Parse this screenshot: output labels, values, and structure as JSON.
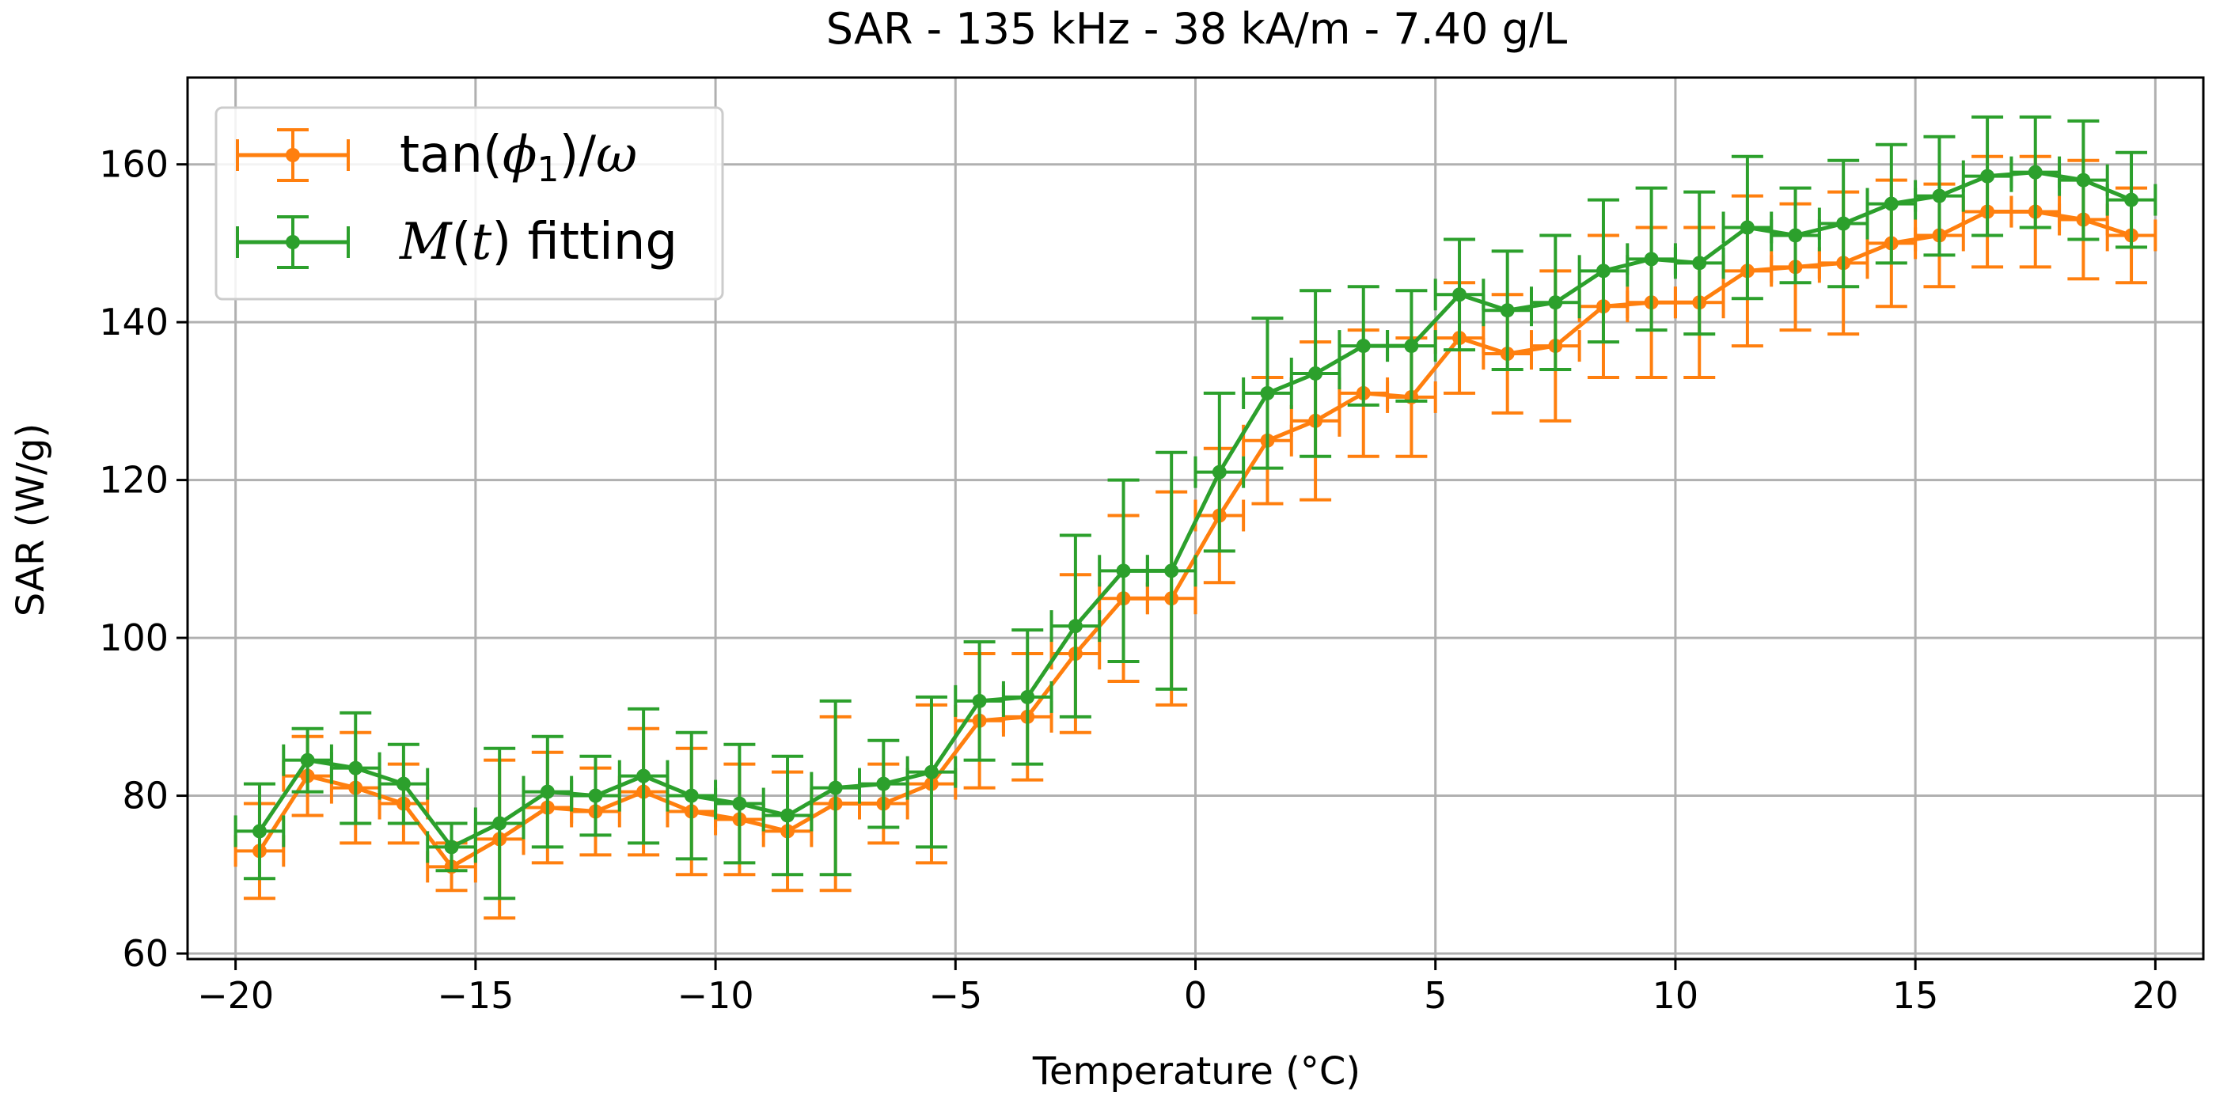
{
  "chart_data": {
    "type": "line",
    "title": "SAR - 135 kHz - 38 kA/m - 7.40 g/L",
    "xlabel": "Temperature (°C)",
    "ylabel": "SAR (W/g)",
    "xlim": [
      -21,
      21
    ],
    "ylim": [
      59.3,
      171
    ],
    "xticks": [
      -20,
      -15,
      -10,
      -5,
      0,
      5,
      10,
      15,
      20
    ],
    "xtick_labels": [
      "−20",
      "−15",
      "−10",
      "−5",
      "0",
      "5",
      "10",
      "15",
      "20"
    ],
    "yticks": [
      60,
      80,
      100,
      120,
      140,
      160
    ],
    "ytick_labels": [
      "60",
      "80",
      "100",
      "120",
      "140",
      "160"
    ],
    "grid": true,
    "legend_position": "top-left",
    "x_error": 0.5,
    "x": [
      -19.5,
      -18.5,
      -17.5,
      -16.5,
      -15.5,
      -14.5,
      -13.5,
      -12.5,
      -11.5,
      -10.5,
      -9.5,
      -8.5,
      -7.5,
      -6.5,
      -5.5,
      -4.5,
      -3.5,
      -2.5,
      -1.5,
      -0.5,
      0.5,
      1.5,
      2.5,
      3.5,
      4.5,
      5.5,
      6.5,
      7.5,
      8.5,
      9.5,
      10.5,
      11.5,
      12.5,
      13.5,
      14.5,
      15.5,
      16.5,
      17.5,
      18.5,
      19.5
    ],
    "series": [
      {
        "name": "tan(ϕ1)/ω",
        "color": "#ff7f0e",
        "values": [
          73,
          82.5,
          81,
          79,
          71,
          74.5,
          78.5,
          78,
          80.5,
          78,
          77,
          75.5,
          79,
          79,
          81.5,
          89.5,
          90,
          98,
          105,
          105,
          115.5,
          125,
          127.5,
          131,
          130.5,
          138,
          136,
          137,
          142,
          142.5,
          142.5,
          146.5,
          147,
          147.5,
          150,
          151,
          154,
          154,
          153,
          151
        ],
        "errors": [
          6,
          5,
          7,
          5,
          3,
          10,
          7,
          5.5,
          8,
          8,
          7,
          7.5,
          11,
          5,
          10,
          8.5,
          8,
          10,
          10.5,
          13.5,
          8.5,
          8,
          10,
          8,
          7.5,
          7,
          7.5,
          9.5,
          9,
          9.5,
          9.5,
          9.5,
          8,
          9,
          8,
          6.5,
          7,
          7,
          7.5,
          6
        ]
      },
      {
        "name": "M(t) fitting",
        "color": "#2ca02c",
        "values": [
          75.5,
          84.5,
          83.5,
          81.5,
          73.5,
          76.5,
          80.5,
          80,
          82.5,
          80,
          79,
          77.5,
          81,
          81.5,
          83,
          92,
          92.5,
          101.5,
          108.5,
          108.5,
          121,
          131,
          133.5,
          137,
          137,
          143.5,
          141.5,
          142.5,
          146.5,
          148,
          147.5,
          152,
          151,
          152.5,
          155,
          156,
          158.5,
          159,
          158,
          155.5
        ],
        "errors": [
          6,
          4,
          7,
          5,
          3,
          9.5,
          7,
          5,
          8.5,
          8,
          7.5,
          7.5,
          11,
          5.5,
          9.5,
          7.5,
          8.5,
          11.5,
          11.5,
          15,
          10,
          9.5,
          10.5,
          7.5,
          7,
          7,
          7.5,
          8.5,
          9,
          9,
          9,
          9,
          6,
          8,
          7.5,
          7.5,
          7.5,
          7,
          7.5,
          6
        ]
      }
    ]
  }
}
